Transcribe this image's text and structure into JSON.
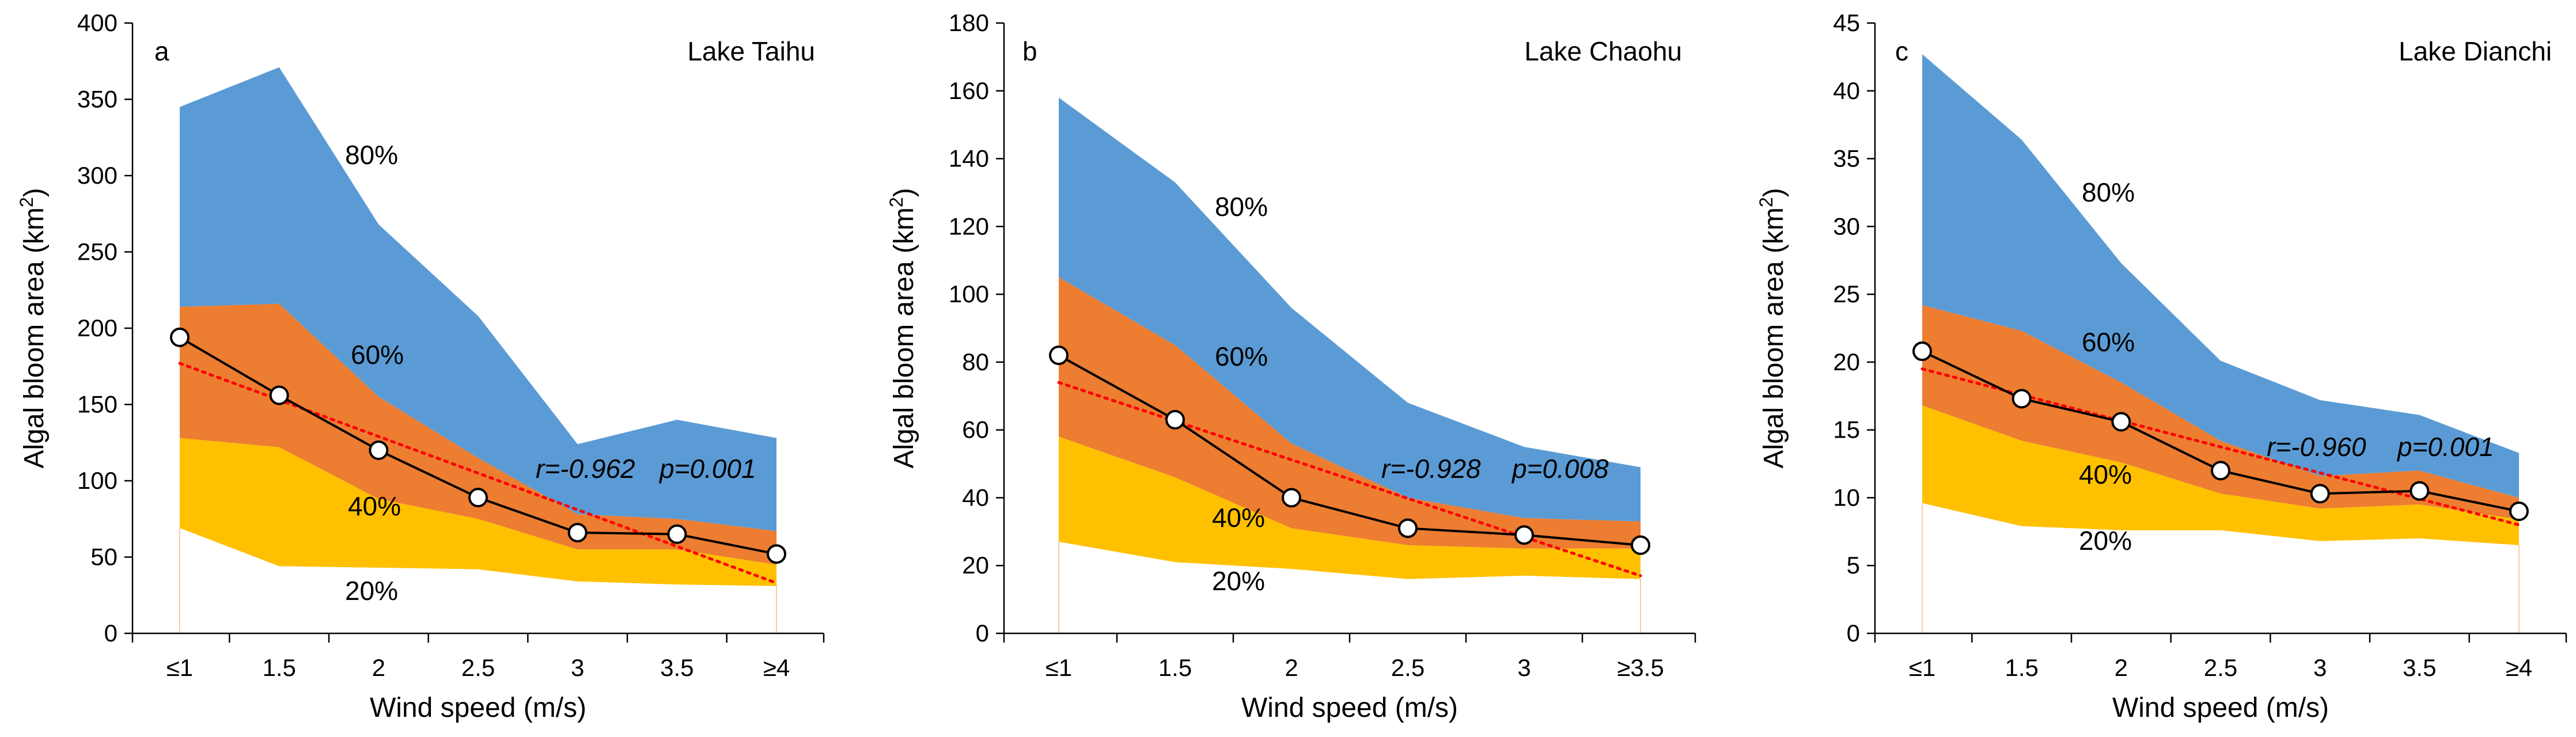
{
  "colors": {
    "p20": "#ffffff",
    "p40": "#ffc000",
    "p60": "#ed7d31",
    "p80": "#5b9bd5",
    "mean_line": "#000000",
    "trend_line": "#ff0000",
    "stub_line": "#f8cbad"
  },
  "chart_data": [
    {
      "type": "area",
      "panel": "a",
      "title": "Lake Taihu",
      "xlabel": "Wind speed (m/s)",
      "ylabel_main": "Algal bloom area (km",
      "ylabel_sup": "2",
      "ylabel_close": ")",
      "ylim": [
        0,
        400
      ],
      "yticks": [
        0,
        50,
        100,
        150,
        200,
        250,
        300,
        350,
        400
      ],
      "categories": [
        "≤1",
        "1.5",
        "2",
        "2.5",
        "3",
        "3.5",
        "≥4"
      ],
      "series": [
        {
          "name": "20%",
          "values": [
            69,
            44,
            43,
            42,
            34,
            32,
            31
          ]
        },
        {
          "name": "40%",
          "values": [
            128,
            122,
            88,
            75,
            55,
            55,
            45
          ]
        },
        {
          "name": "60%",
          "values": [
            214,
            216,
            155,
            115,
            78,
            75,
            67
          ]
        },
        {
          "name": "80%",
          "values": [
            345,
            371,
            268,
            208,
            124,
            140,
            128
          ]
        },
        {
          "name": "mean",
          "values": [
            194,
            156,
            120,
            89,
            66,
            65,
            52
          ]
        }
      ],
      "trend": {
        "start": 177,
        "end": 33
      },
      "band_labels": [
        "80%",
        "60%",
        "40%",
        "20%"
      ],
      "stats": {
        "r": "r=-0.962",
        "p": "p=0.001"
      }
    },
    {
      "type": "area",
      "panel": "b",
      "title": "Lake Chaohu",
      "xlabel": "Wind speed (m/s)",
      "ylabel_main": "Algal bloom area (km",
      "ylabel_sup": "2",
      "ylabel_close": ")",
      "ylim": [
        0,
        180
      ],
      "yticks": [
        0,
        20,
        40,
        60,
        80,
        100,
        120,
        140,
        160,
        180
      ],
      "categories": [
        "≤1",
        "1.5",
        "2",
        "2.5",
        "3",
        "≥3.5"
      ],
      "series": [
        {
          "name": "20%",
          "values": [
            27,
            21,
            19,
            16,
            17,
            16
          ]
        },
        {
          "name": "40%",
          "values": [
            58,
            46,
            31,
            26,
            25,
            25
          ]
        },
        {
          "name": "60%",
          "values": [
            105,
            85,
            56,
            40,
            34,
            33
          ]
        },
        {
          "name": "80%",
          "values": [
            158,
            133,
            96,
            68,
            55,
            49
          ]
        },
        {
          "name": "mean",
          "values": [
            82,
            63,
            40,
            31,
            29,
            26
          ]
        }
      ],
      "trend": {
        "start": 74,
        "end": 17
      },
      "band_labels": [
        "80%",
        "60%",
        "40%",
        "20%"
      ],
      "stats": {
        "r": "r=-0.928",
        "p": "p=0.008"
      }
    },
    {
      "type": "area",
      "panel": "c",
      "title": "Lake Dianchi",
      "xlabel": "Wind speed (m/s)",
      "ylabel_main": "Algal bloom area (km",
      "ylabel_sup": "2",
      "ylabel_close": ")",
      "ylim": [
        0,
        45
      ],
      "yticks": [
        0,
        5,
        10,
        15,
        20,
        25,
        30,
        35,
        40,
        45
      ],
      "categories": [
        "≤1",
        "1.5",
        "2",
        "2.5",
        "3",
        "3.5",
        "≥4"
      ],
      "series": [
        {
          "name": "20%",
          "values": [
            9.6,
            7.9,
            7.6,
            7.6,
            6.8,
            7.0,
            6.5
          ]
        },
        {
          "name": "40%",
          "values": [
            16.8,
            14.2,
            12.6,
            10.3,
            9.2,
            9.5,
            8.4
          ]
        },
        {
          "name": "60%",
          "values": [
            24.2,
            22.3,
            18.5,
            14.2,
            11.6,
            12.0,
            10.0
          ]
        },
        {
          "name": "80%",
          "values": [
            42.7,
            36.4,
            27.3,
            20.1,
            17.2,
            16.1,
            13.3
          ]
        },
        {
          "name": "mean",
          "values": [
            20.8,
            17.3,
            15.6,
            12.0,
            10.3,
            10.5,
            9.0
          ]
        }
      ],
      "trend": {
        "start": 19.5,
        "end": 8.0
      },
      "band_labels": [
        "80%",
        "60%",
        "40%",
        "20%"
      ],
      "stats": {
        "r": "r=-0.960",
        "p": "p=0.001"
      }
    }
  ]
}
